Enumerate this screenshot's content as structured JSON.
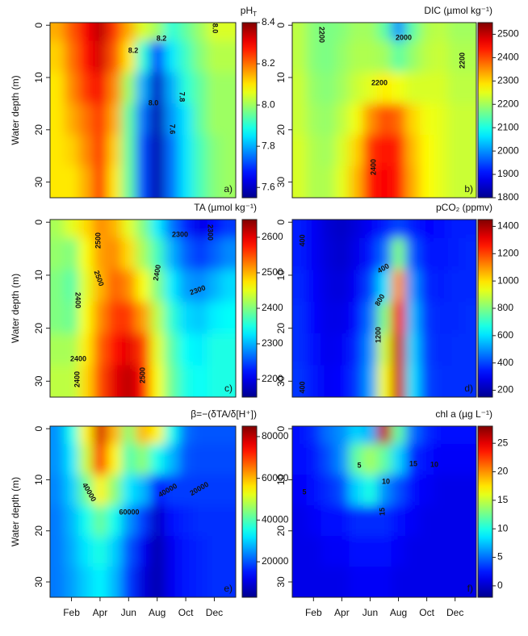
{
  "chart_data": [
    {
      "type": "heatmap",
      "title": "pH",
      "title_sub": "T",
      "colormap": "jet",
      "ylabel": "Water depth (m)",
      "panel_label": "a)",
      "y": [
        0,
        6,
        12,
        18,
        24,
        30
      ],
      "ylim": [
        33,
        -0.5
      ],
      "yticks": [
        0,
        10,
        20,
        30
      ],
      "clim": [
        7.55,
        8.4
      ],
      "cticks": [
        7.6,
        7.8,
        {
          "value": 8,
          "label": "8.0"
        },
        8.2,
        8.4
      ],
      "values": [
        [
          8.15,
          8.12,
          8.1,
          8.1,
          8.1,
          8.1
        ],
        [
          8.22,
          8.2,
          8.18,
          8.15,
          8.12,
          8.1
        ],
        [
          8.3,
          8.28,
          8.25,
          8.2,
          8.18,
          8.15
        ],
        [
          8.35,
          8.33,
          8.3,
          8.25,
          8.25,
          8.25
        ],
        [
          8.25,
          8.22,
          8.18,
          8.15,
          8.12,
          8.1
        ],
        [
          8.15,
          8.1,
          8.0,
          7.95,
          7.95,
          7.95
        ],
        [
          8.05,
          7.9,
          7.8,
          7.75,
          7.72,
          7.72
        ],
        [
          8.0,
          7.7,
          7.6,
          7.58,
          7.58,
          7.58
        ],
        [
          7.9,
          7.85,
          7.8,
          7.78,
          7.75,
          7.75
        ],
        [
          7.95,
          7.92,
          7.9,
          7.85,
          7.85,
          7.85
        ],
        [
          8.0,
          7.98,
          7.95,
          7.95,
          7.93,
          7.93
        ],
        [
          8.05,
          8.02,
          8.0,
          8.0,
          7.98,
          7.98
        ],
        [
          8.05,
          8.02,
          8.0,
          8.0,
          8.0,
          8.0
        ]
      ],
      "contour_labels": [
        8.2,
        8.2,
        {
          "value": 8,
          "label": "8.0"
        },
        7.8,
        7.6,
        {
          "value": 8,
          "label": "8.0"
        }
      ]
    },
    {
      "type": "heatmap",
      "title": "DIC (µmol kg⁻¹)",
      "colormap": "jet",
      "panel_label": "b)",
      "y": [
        0,
        6,
        12,
        18,
        24,
        30
      ],
      "ylim": [
        33,
        -0.5
      ],
      "yticks": [
        0,
        10,
        20,
        30
      ],
      "clim": [
        1800,
        2550
      ],
      "cticks": [
        1800,
        1900,
        2000,
        2100,
        2200,
        2300,
        2400,
        2500
      ],
      "values": [
        [
          2220,
          2220,
          2230,
          2230,
          2240,
          2240
        ],
        [
          2180,
          2180,
          2190,
          2200,
          2210,
          2210
        ],
        [
          2170,
          2170,
          2180,
          2190,
          2200,
          2210
        ],
        [
          2180,
          2190,
          2200,
          2220,
          2240,
          2250
        ],
        [
          2200,
          2210,
          2230,
          2260,
          2300,
          2320
        ],
        [
          2200,
          2210,
          2250,
          2350,
          2420,
          2440
        ],
        [
          2150,
          2200,
          2280,
          2400,
          2450,
          2460
        ],
        [
          2000,
          2150,
          2260,
          2380,
          2430,
          2440
        ],
        [
          2150,
          2190,
          2240,
          2300,
          2320,
          2330
        ],
        [
          2210,
          2220,
          2240,
          2260,
          2270,
          2270
        ],
        [
          2220,
          2230,
          2240,
          2250,
          2250,
          2250
        ],
        [
          2200,
          2210,
          2220,
          2230,
          2230,
          2230
        ],
        [
          2200,
          2210,
          2220,
          2230,
          2230,
          2230
        ]
      ],
      "contour_labels": [
        2200,
        2000,
        2200,
        2200,
        2400
      ]
    },
    {
      "type": "heatmap",
      "title": "TA (µmol kg⁻¹)",
      "colormap": "jet",
      "ylabel": "Water depth (m)",
      "panel_label": "c)",
      "y": [
        0,
        6,
        12,
        18,
        24,
        30
      ],
      "ylim": [
        33,
        -0.5
      ],
      "yticks": [
        0,
        10,
        20,
        30
      ],
      "clim": [
        2150,
        2650
      ],
      "cticks": [
        2200,
        2300,
        2400,
        2500,
        2600
      ],
      "values": [
        [
          2420,
          2410,
          2400,
          2400,
          2420,
          2430
        ],
        [
          2450,
          2400,
          2380,
          2390,
          2420,
          2430
        ],
        [
          2480,
          2460,
          2450,
          2460,
          2470,
          2480
        ],
        [
          2520,
          2510,
          2500,
          2520,
          2540,
          2550
        ],
        [
          2500,
          2520,
          2540,
          2560,
          2580,
          2600
        ],
        [
          2450,
          2480,
          2520,
          2560,
          2600,
          2620
        ],
        [
          2400,
          2420,
          2460,
          2510,
          2560,
          2580
        ],
        [
          2330,
          2370,
          2400,
          2430,
          2450,
          2460
        ],
        [
          2270,
          2300,
          2330,
          2360,
          2380,
          2390
        ],
        [
          2230,
          2260,
          2290,
          2320,
          2340,
          2350
        ],
        [
          2200,
          2240,
          2280,
          2310,
          2330,
          2340
        ],
        [
          2220,
          2260,
          2300,
          2330,
          2350,
          2350
        ],
        [
          2240,
          2280,
          2320,
          2340,
          2350,
          2350
        ]
      ],
      "contour_labels": [
        2500,
        2500,
        2400,
        2300,
        2300,
        2300,
        2400,
        2400,
        2400,
        2500
      ]
    },
    {
      "type": "heatmap",
      "title": "pCO₂ (ppmv)",
      "colormap": "jet",
      "panel_label": "d)",
      "y": [
        0,
        6,
        12,
        18,
        24,
        30
      ],
      "ylim": [
        33,
        -0.5
      ],
      "yticks": [
        0,
        10,
        20,
        30
      ],
      "clim": [
        150,
        1450
      ],
      "cticks": [
        200,
        400,
        600,
        800,
        1000,
        1200,
        1400
      ],
      "values": [
        [
          350,
          350,
          360,
          370,
          370,
          380
        ],
        [
          300,
          300,
          310,
          320,
          330,
          340
        ],
        [
          250,
          260,
          270,
          280,
          290,
          300
        ],
        [
          230,
          240,
          260,
          280,
          300,
          320
        ],
        [
          260,
          280,
          300,
          330,
          360,
          380
        ],
        [
          300,
          340,
          400,
          460,
          500,
          520
        ],
        [
          350,
          450,
          600,
          800,
          900,
          950
        ],
        [
          400,
          800,
          1100,
          1300,
          1350,
          1350
        ],
        [
          350,
          420,
          500,
          550,
          580,
          600
        ],
        [
          320,
          340,
          360,
          380,
          390,
          400
        ],
        [
          330,
          340,
          350,
          360,
          360,
          370
        ],
        [
          350,
          350,
          360,
          360,
          370,
          370
        ],
        [
          350,
          360,
          360,
          370,
          370,
          370
        ]
      ],
      "contour_labels": [
        400,
        400,
        800,
        1200,
        400
      ]
    },
    {
      "type": "heatmap",
      "title": "β=−(δTA/δ[H⁺])",
      "colormap": "jet",
      "ylabel": "Water depth (m)",
      "panel_label": "e)",
      "categories": [
        null,
        "Feb",
        null,
        "Apr",
        null,
        "Jun",
        null,
        "Aug",
        null,
        "Oct",
        null,
        "Dec",
        null
      ],
      "y": [
        0,
        6,
        12,
        18,
        24,
        30
      ],
      "ylim": [
        33,
        -0.5
      ],
      "yticks": [
        0,
        10,
        20,
        30
      ],
      "clim": [
        3000,
        85000
      ],
      "cticks": [
        20000,
        40000,
        60000,
        80000
      ],
      "values": [
        [
          25000,
          25000,
          24000,
          23000,
          23000,
          23000
        ],
        [
          35000,
          32000,
          30000,
          28000,
          27000,
          26000
        ],
        [
          55000,
          50000,
          42000,
          35000,
          32000,
          30000
        ],
        [
          78000,
          72000,
          55000,
          42000,
          36000,
          33000
        ],
        [
          60000,
          55000,
          45000,
          35000,
          30000,
          28000
        ],
        [
          45000,
          40000,
          32000,
          25000,
          20000,
          18000
        ],
        [
          60000,
          45000,
          28000,
          18000,
          12000,
          10000
        ],
        [
          55000,
          35000,
          15000,
          8000,
          6000,
          6000
        ],
        [
          35000,
          28000,
          18000,
          14000,
          12000,
          12000
        ],
        [
          22000,
          20000,
          18000,
          16000,
          15000,
          15000
        ],
        [
          20000,
          19000,
          18000,
          17000,
          16000,
          16000
        ],
        [
          20000,
          19000,
          18000,
          17000,
          17000,
          17000
        ],
        [
          20000,
          19000,
          18000,
          17000,
          17000,
          17000
        ]
      ],
      "contour_labels": [
        40000,
        60000,
        40000,
        20000
      ]
    },
    {
      "type": "heatmap",
      "title": "chl a (µg L⁻¹)",
      "colormap": "jet",
      "panel_label": "f)",
      "categories": [
        null,
        "Feb",
        null,
        "Apr",
        null,
        "Jun",
        null,
        "Aug",
        null,
        "Oct",
        null,
        "Dec",
        null
      ],
      "y": [
        0,
        6,
        12,
        18,
        24,
        30
      ],
      "ylim": [
        33,
        -0.5
      ],
      "yticks": [
        0,
        10,
        20,
        30
      ],
      "clim": [
        -2,
        28
      ],
      "cticks": [
        0,
        5,
        10,
        15,
        20,
        25
      ],
      "values": [
        [
          2,
          2,
          1.5,
          1,
          1,
          1
        ],
        [
          3,
          2.5,
          2,
          1.5,
          1,
          1
        ],
        [
          5,
          4,
          3,
          2,
          1.5,
          1
        ],
        [
          6,
          6,
          4,
          2,
          1.5,
          1
        ],
        [
          8,
          12,
          8,
          3,
          2,
          1.5
        ],
        [
          7,
          14,
          10,
          3,
          2,
          1.5
        ],
        [
          26,
          12,
          6,
          3,
          2,
          1.5
        ],
        [
          12,
          8,
          4,
          2,
          1.5,
          1
        ],
        [
          5,
          3,
          2,
          1.5,
          1,
          1
        ],
        [
          3,
          2,
          1.5,
          1,
          1,
          1
        ],
        [
          2,
          1.5,
          1,
          1,
          1,
          1
        ],
        [
          2,
          1.5,
          1,
          1,
          1,
          1
        ],
        [
          2,
          1.5,
          1,
          1,
          1,
          1
        ]
      ],
      "contour_labels": [
        5,
        5,
        10,
        10,
        15,
        15
      ]
    }
  ]
}
